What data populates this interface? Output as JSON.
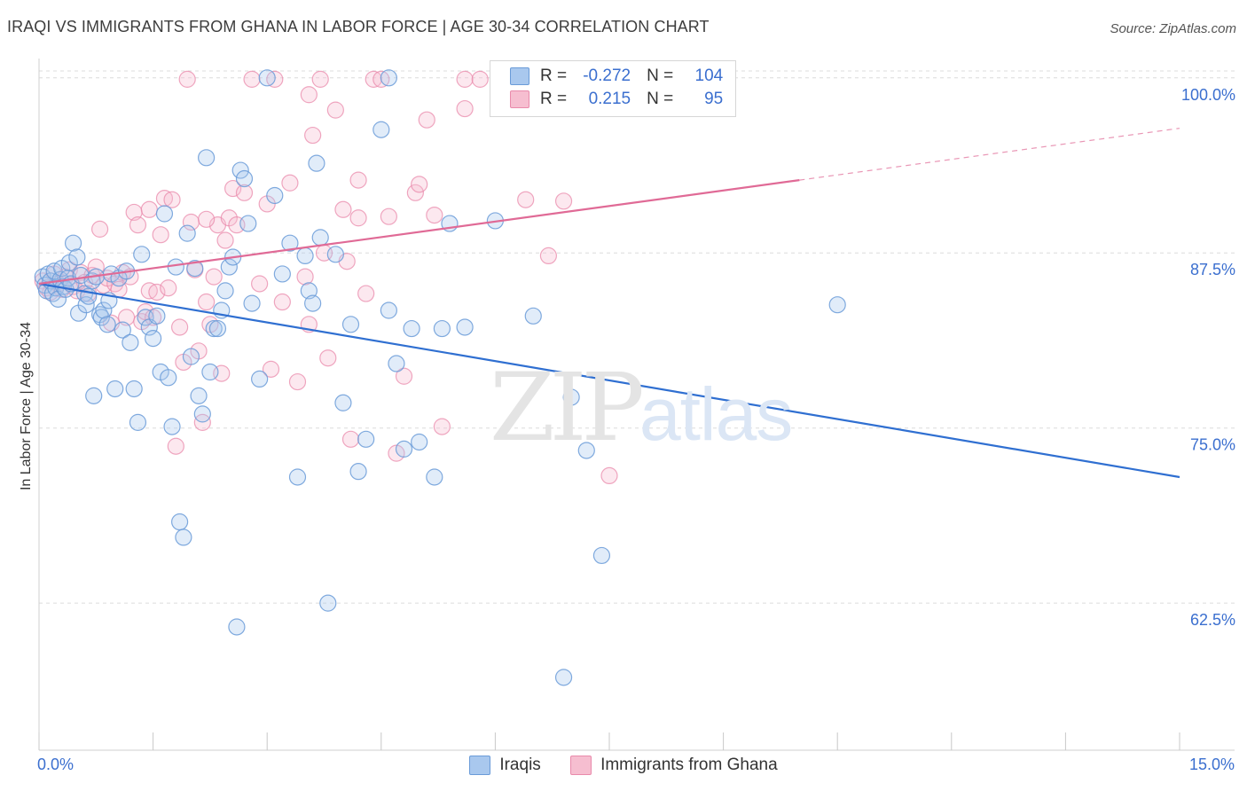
{
  "title": "IRAQI VS IMMIGRANTS FROM GHANA IN LABOR FORCE | AGE 30-34 CORRELATION CHART",
  "source": "Source: ZipAtlas.com",
  "watermark": {
    "zip": "ZIP",
    "atlas": "atlas"
  },
  "colors": {
    "blue_fill": "#a9c8ee",
    "blue_edge": "#6a9bd8",
    "blue_line": "#2f6fd1",
    "pink_fill": "#f6bed0",
    "pink_edge": "#e98aab",
    "pink_line": "#e06a96",
    "tick_text": "#3b6fcf",
    "grid": "#dcdcdc"
  },
  "legend": {
    "iraqis": {
      "r_label": "R =",
      "r_value": "-0.272",
      "n_label": "N =",
      "n_value": "104"
    },
    "ghana": {
      "r_label": "R =",
      "r_value": "0.215",
      "n_label": "N =",
      "n_value": "95"
    }
  },
  "bottom_legend": [
    "Iraqis",
    "Immigrants from Ghana"
  ],
  "chart_data": {
    "type": "scatter",
    "title": "IRAQI VS IMMIGRANTS FROM GHANA IN LABOR FORCE | AGE 30-34 CORRELATION CHART",
    "xlabel": "",
    "ylabel": "In Labor Force | Age 30-34",
    "xlim": [
      0,
      15
    ],
    "ylim": [
      52,
      101
    ],
    "x_tick_labels": [
      "0.0%",
      "15.0%"
    ],
    "y_ticks": [
      62.5,
      75.0,
      87.5,
      100.0
    ],
    "y_tick_labels": [
      "62.5%",
      "75.0%",
      "87.5%",
      "100.0%"
    ],
    "grid": "horizontal dashed",
    "legend_position": "top-center",
    "series": [
      {
        "name": "Iraqis",
        "trend": {
          "x": [
            0.0,
            15.0
          ],
          "y": [
            85.3,
            71.5
          ]
        },
        "points": [
          [
            0.05,
            85.8
          ],
          [
            0.08,
            85.2
          ],
          [
            0.1,
            84.8
          ],
          [
            0.12,
            86.0
          ],
          [
            0.15,
            85.5
          ],
          [
            0.18,
            84.6
          ],
          [
            0.2,
            86.2
          ],
          [
            0.22,
            85.0
          ],
          [
            0.25,
            84.2
          ],
          [
            0.28,
            85.6
          ],
          [
            0.3,
            86.4
          ],
          [
            0.32,
            85.1
          ],
          [
            0.35,
            84.9
          ],
          [
            0.38,
            85.7
          ],
          [
            0.4,
            86.8
          ],
          [
            0.42,
            85.3
          ],
          [
            0.45,
            88.2
          ],
          [
            0.5,
            87.2
          ],
          [
            0.52,
            83.2
          ],
          [
            0.55,
            85.9
          ],
          [
            0.6,
            84.6
          ],
          [
            0.62,
            83.8
          ],
          [
            0.65,
            84.4
          ],
          [
            0.7,
            85.5
          ],
          [
            0.72,
            77.3
          ],
          [
            0.75,
            85.8
          ],
          [
            0.8,
            83.1
          ],
          [
            0.82,
            82.9
          ],
          [
            0.85,
            83.4
          ],
          [
            0.9,
            82.4
          ],
          [
            0.92,
            84.1
          ],
          [
            0.95,
            86.0
          ],
          [
            1.0,
            77.8
          ],
          [
            1.05,
            85.7
          ],
          [
            1.1,
            82.0
          ],
          [
            1.15,
            86.2
          ],
          [
            1.2,
            81.1
          ],
          [
            1.25,
            77.8
          ],
          [
            1.3,
            75.4
          ],
          [
            1.35,
            87.4
          ],
          [
            1.4,
            82.9
          ],
          [
            1.45,
            82.2
          ],
          [
            1.5,
            81.4
          ],
          [
            1.55,
            83.0
          ],
          [
            1.6,
            79.0
          ],
          [
            1.65,
            90.3
          ],
          [
            1.7,
            78.6
          ],
          [
            1.75,
            75.1
          ],
          [
            1.8,
            86.5
          ],
          [
            1.85,
            68.3
          ],
          [
            1.9,
            67.2
          ],
          [
            1.95,
            88.9
          ],
          [
            2.0,
            80.1
          ],
          [
            2.05,
            86.4
          ],
          [
            2.1,
            77.3
          ],
          [
            2.15,
            76.0
          ],
          [
            2.2,
            94.3
          ],
          [
            2.25,
            79.0
          ],
          [
            2.3,
            82.1
          ],
          [
            2.35,
            82.1
          ],
          [
            2.4,
            83.4
          ],
          [
            2.45,
            84.8
          ],
          [
            2.5,
            86.5
          ],
          [
            2.55,
            87.2
          ],
          [
            2.6,
            60.8
          ],
          [
            2.65,
            93.4
          ],
          [
            2.7,
            92.8
          ],
          [
            2.75,
            89.6
          ],
          [
            2.8,
            83.9
          ],
          [
            2.9,
            78.5
          ],
          [
            3.0,
            100.0
          ],
          [
            3.1,
            91.6
          ],
          [
            3.2,
            86.0
          ],
          [
            3.3,
            88.2
          ],
          [
            3.4,
            71.5
          ],
          [
            3.5,
            87.3
          ],
          [
            3.55,
            84.8
          ],
          [
            3.6,
            83.9
          ],
          [
            3.65,
            93.9
          ],
          [
            3.7,
            88.6
          ],
          [
            3.8,
            62.5
          ],
          [
            3.9,
            87.4
          ],
          [
            4.0,
            76.8
          ],
          [
            4.1,
            82.4
          ],
          [
            4.2,
            71.9
          ],
          [
            4.3,
            74.2
          ],
          [
            4.5,
            96.3
          ],
          [
            4.6,
            83.4
          ],
          [
            4.7,
            79.6
          ],
          [
            4.8,
            73.5
          ],
          [
            4.9,
            82.1
          ],
          [
            5.0,
            74.0
          ],
          [
            5.2,
            71.5
          ],
          [
            5.3,
            82.1
          ],
          [
            5.4,
            89.6
          ],
          [
            5.6,
            82.2
          ],
          [
            6.0,
            89.8
          ],
          [
            6.5,
            83.0
          ],
          [
            6.9,
            57.2
          ],
          [
            7.0,
            77.2
          ],
          [
            7.2,
            73.4
          ],
          [
            7.4,
            65.9
          ],
          [
            10.5,
            83.8
          ],
          [
            4.6,
            100.0
          ]
        ]
      },
      {
        "name": "Immigrants from Ghana",
        "trend": {
          "x": [
            0.0,
            10.0
          ],
          "y": [
            85.3,
            92.7
          ]
        },
        "trend_dashed": {
          "x": [
            10.0,
            15.0
          ],
          "y": [
            92.7,
            96.4
          ]
        },
        "points": [
          [
            0.05,
            85.5
          ],
          [
            0.1,
            85.0
          ],
          [
            0.15,
            84.7
          ],
          [
            0.2,
            86.0
          ],
          [
            0.25,
            85.3
          ],
          [
            0.3,
            84.9
          ],
          [
            0.35,
            85.8
          ],
          [
            0.4,
            86.3
          ],
          [
            0.45,
            85.1
          ],
          [
            0.5,
            84.8
          ],
          [
            0.55,
            86.1
          ],
          [
            0.6,
            85.4
          ],
          [
            0.65,
            84.6
          ],
          [
            0.7,
            85.9
          ],
          [
            0.75,
            86.5
          ],
          [
            0.8,
            89.2
          ],
          [
            0.85,
            85.2
          ],
          [
            0.9,
            85.7
          ],
          [
            0.95,
            82.5
          ],
          [
            1.0,
            85.3
          ],
          [
            1.05,
            84.9
          ],
          [
            1.1,
            86.1
          ],
          [
            1.15,
            82.9
          ],
          [
            1.2,
            85.8
          ],
          [
            1.25,
            90.4
          ],
          [
            1.3,
            89.5
          ],
          [
            1.35,
            82.6
          ],
          [
            1.4,
            83.3
          ],
          [
            1.45,
            84.8
          ],
          [
            1.5,
            82.9
          ],
          [
            1.55,
            84.7
          ],
          [
            1.6,
            88.8
          ],
          [
            1.65,
            91.4
          ],
          [
            1.7,
            85.0
          ],
          [
            1.75,
            91.3
          ],
          [
            1.8,
            73.7
          ],
          [
            1.85,
            82.2
          ],
          [
            1.9,
            79.7
          ],
          [
            1.95,
            99.9
          ],
          [
            2.0,
            89.7
          ],
          [
            2.05,
            86.3
          ],
          [
            2.1,
            80.5
          ],
          [
            2.15,
            75.4
          ],
          [
            2.2,
            84.0
          ],
          [
            2.25,
            82.4
          ],
          [
            2.3,
            85.8
          ],
          [
            2.35,
            89.5
          ],
          [
            2.4,
            78.9
          ],
          [
            2.45,
            88.4
          ],
          [
            2.5,
            90.0
          ],
          [
            2.55,
            92.1
          ],
          [
            2.6,
            89.5
          ],
          [
            2.7,
            91.8
          ],
          [
            2.8,
            99.9
          ],
          [
            2.9,
            85.3
          ],
          [
            3.0,
            91.0
          ],
          [
            3.05,
            79.2
          ],
          [
            3.1,
            99.9
          ],
          [
            3.2,
            84.0
          ],
          [
            3.3,
            92.5
          ],
          [
            3.4,
            78.3
          ],
          [
            3.5,
            85.8
          ],
          [
            3.55,
            82.4
          ],
          [
            3.6,
            95.9
          ],
          [
            3.7,
            99.9
          ],
          [
            3.75,
            87.5
          ],
          [
            3.8,
            80.0
          ],
          [
            3.9,
            97.7
          ],
          [
            4.0,
            90.6
          ],
          [
            4.05,
            86.9
          ],
          [
            4.1,
            74.2
          ],
          [
            4.2,
            92.7
          ],
          [
            4.3,
            84.6
          ],
          [
            4.4,
            99.9
          ],
          [
            4.5,
            99.9
          ],
          [
            4.6,
            90.1
          ],
          [
            4.7,
            73.2
          ],
          [
            4.8,
            78.7
          ],
          [
            4.95,
            91.8
          ],
          [
            5.0,
            92.4
          ],
          [
            5.1,
            97.0
          ],
          [
            5.2,
            90.2
          ],
          [
            5.3,
            75.1
          ],
          [
            5.6,
            99.9
          ],
          [
            5.8,
            99.9
          ],
          [
            6.2,
            97.9
          ],
          [
            6.4,
            91.3
          ],
          [
            6.7,
            87.3
          ],
          [
            6.9,
            91.2
          ],
          [
            7.5,
            71.6
          ],
          [
            2.2,
            89.9
          ],
          [
            1.45,
            90.6
          ],
          [
            3.55,
            98.8
          ],
          [
            4.2,
            90.0
          ],
          [
            5.6,
            97.8
          ]
        ]
      }
    ]
  }
}
